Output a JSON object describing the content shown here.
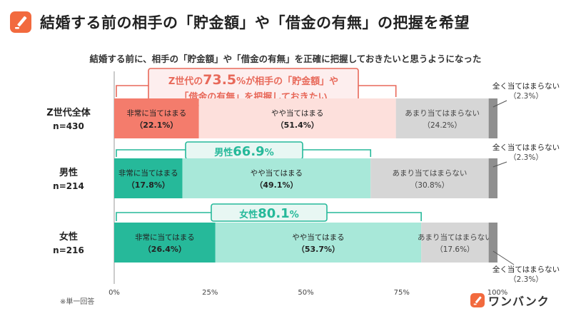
{
  "header": {
    "title": "結婚する前の相手の「貯金額」や「借金の有無」の把握を希望",
    "logo_icon": "pencil-icon"
  },
  "brand": {
    "name": "ワンバンク",
    "logo_icon": "pencil-icon",
    "color": "#f26a3e"
  },
  "chart_data": {
    "type": "bar",
    "orientation": "horizontal",
    "stacked": true,
    "title": "結婚する前に、相手の「貯金額」や「借金の有無」を正確に把握しておきたいと思うようになった",
    "categories": [
      {
        "name": "Z世代全体",
        "n": "n=430"
      },
      {
        "name": "男性",
        "n": "n=214"
      },
      {
        "name": "女性",
        "n": "n=216"
      }
    ],
    "series": [
      {
        "name": "非常に当てはまる",
        "values": [
          22.1,
          17.8,
          26.4
        ],
        "labels": [
          "（22.1%）",
          "（17.8%）",
          "（26.4%）"
        ],
        "colors": [
          "#f47c6c",
          "#26b99a",
          "#26b99a"
        ]
      },
      {
        "name": "やや当てはまる",
        "values": [
          51.4,
          49.1,
          53.7
        ],
        "labels": [
          "（51.4%）",
          "（49.1%）",
          "（53.7%）"
        ],
        "colors": [
          "#fde0dc",
          "#a8e8d9",
          "#a8e8d9"
        ]
      },
      {
        "name": "あまり当てはまらない",
        "values": [
          24.2,
          30.8,
          17.6
        ],
        "labels": [
          "（24.2%）",
          "（30.8%）",
          "（17.6%）"
        ],
        "colors": [
          "#d6d6d6",
          "#d6d6d6",
          "#d6d6d6"
        ]
      },
      {
        "name": "全く当てはまらない",
        "values": [
          2.3,
          2.3,
          2.3
        ],
        "labels": [
          "（2.3%）",
          "（2.3%）",
          "（2.3%）"
        ],
        "colors": [
          "#8f8f8f",
          "#8f8f8f",
          "#8f8f8f"
        ]
      }
    ],
    "callouts": [
      {
        "line1_pre": "Z世代の",
        "value": "73.5",
        "unit": "%",
        "line1_post": "が相手の「貯金額」や",
        "line2": "「借金の有無」を把握しておきたい",
        "color": "#e8695a",
        "bg": "#fdeeee"
      },
      {
        "pre": "男性",
        "value": "66.9",
        "unit": "%",
        "color": "#26b99a",
        "bg": "#e8f7f3"
      },
      {
        "pre": "女性",
        "value": "80.1",
        "unit": "%",
        "color": "#26b99a",
        "bg": "#e8f7f3"
      }
    ],
    "x_ticks": [
      "0%",
      "25%",
      "50%",
      "75%",
      "100%"
    ],
    "xlim": [
      0,
      100
    ],
    "footnote": "※単一回答"
  }
}
